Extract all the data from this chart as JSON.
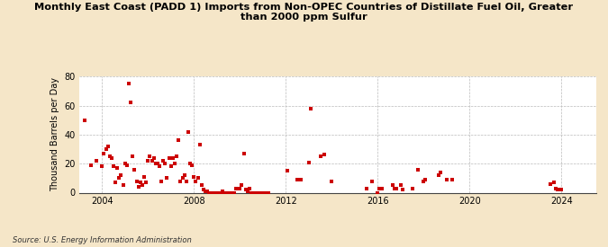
{
  "title": "Monthly East Coast (PADD 1) Imports from Non-OPEC Countries of Distillate Fuel Oil, Greater\nthan 2000 ppm Sulfur",
  "ylabel": "Thousand Barrels per Day",
  "source": "Source: U.S. Energy Information Administration",
  "background_color": "#f5e6c8",
  "plot_bg_color": "#ffffff",
  "marker_color": "#cc0000",
  "ylim": [
    0,
    80
  ],
  "yticks": [
    0,
    20,
    40,
    60,
    80
  ],
  "xlim": [
    2003.0,
    2025.5
  ],
  "xticks_years": [
    2004,
    2008,
    2012,
    2016,
    2020,
    2024
  ],
  "data": [
    [
      2003.25,
      50
    ],
    [
      2003.5,
      19
    ],
    [
      2003.75,
      22
    ],
    [
      2004.0,
      18
    ],
    [
      2004.08,
      27
    ],
    [
      2004.17,
      30
    ],
    [
      2004.25,
      32
    ],
    [
      2004.33,
      25
    ],
    [
      2004.42,
      24
    ],
    [
      2004.5,
      18
    ],
    [
      2004.58,
      7
    ],
    [
      2004.67,
      17
    ],
    [
      2004.75,
      10
    ],
    [
      2004.83,
      12
    ],
    [
      2004.92,
      5
    ],
    [
      2005.0,
      20
    ],
    [
      2005.08,
      19
    ],
    [
      2005.17,
      75
    ],
    [
      2005.25,
      62
    ],
    [
      2005.33,
      25
    ],
    [
      2005.42,
      16
    ],
    [
      2005.5,
      8
    ],
    [
      2005.58,
      4
    ],
    [
      2005.67,
      7
    ],
    [
      2005.75,
      5
    ],
    [
      2005.83,
      11
    ],
    [
      2005.92,
      7
    ],
    [
      2006.0,
      22
    ],
    [
      2006.08,
      25
    ],
    [
      2006.17,
      22
    ],
    [
      2006.25,
      24
    ],
    [
      2006.33,
      20
    ],
    [
      2006.42,
      20
    ],
    [
      2006.5,
      18
    ],
    [
      2006.58,
      8
    ],
    [
      2006.67,
      22
    ],
    [
      2006.75,
      20
    ],
    [
      2006.83,
      10
    ],
    [
      2006.92,
      24
    ],
    [
      2007.0,
      18
    ],
    [
      2007.08,
      24
    ],
    [
      2007.17,
      20
    ],
    [
      2007.25,
      25
    ],
    [
      2007.33,
      36
    ],
    [
      2007.42,
      8
    ],
    [
      2007.5,
      10
    ],
    [
      2007.58,
      12
    ],
    [
      2007.67,
      8
    ],
    [
      2007.75,
      42
    ],
    [
      2007.83,
      20
    ],
    [
      2007.92,
      19
    ],
    [
      2008.0,
      11
    ],
    [
      2008.08,
      8
    ],
    [
      2008.17,
      10
    ],
    [
      2008.25,
      33
    ],
    [
      2008.33,
      5
    ],
    [
      2008.42,
      2
    ],
    [
      2008.5,
      1
    ],
    [
      2008.58,
      1
    ],
    [
      2008.67,
      0
    ],
    [
      2008.75,
      0
    ],
    [
      2008.83,
      0
    ],
    [
      2008.92,
      0
    ],
    [
      2009.0,
      0
    ],
    [
      2009.08,
      0
    ],
    [
      2009.17,
      0
    ],
    [
      2009.25,
      1
    ],
    [
      2009.33,
      0
    ],
    [
      2009.42,
      0
    ],
    [
      2009.5,
      0
    ],
    [
      2009.58,
      0
    ],
    [
      2009.67,
      0
    ],
    [
      2009.75,
      0
    ],
    [
      2009.83,
      3
    ],
    [
      2009.92,
      3
    ],
    [
      2010.0,
      3
    ],
    [
      2010.08,
      5
    ],
    [
      2010.17,
      27
    ],
    [
      2010.25,
      2
    ],
    [
      2010.33,
      1
    ],
    [
      2010.42,
      3
    ],
    [
      2010.5,
      0
    ],
    [
      2010.58,
      0
    ],
    [
      2010.67,
      0
    ],
    [
      2010.75,
      0
    ],
    [
      2010.83,
      0
    ],
    [
      2010.92,
      0
    ],
    [
      2011.0,
      0
    ],
    [
      2011.08,
      0
    ],
    [
      2011.17,
      0
    ],
    [
      2011.25,
      0
    ],
    [
      2012.08,
      15
    ],
    [
      2012.5,
      9
    ],
    [
      2012.67,
      9
    ],
    [
      2013.0,
      21
    ],
    [
      2013.08,
      58
    ],
    [
      2013.5,
      25
    ],
    [
      2013.67,
      26
    ],
    [
      2014.0,
      8
    ],
    [
      2015.5,
      3
    ],
    [
      2015.75,
      8
    ],
    [
      2016.0,
      0
    ],
    [
      2016.08,
      3
    ],
    [
      2016.17,
      3
    ],
    [
      2016.67,
      5
    ],
    [
      2016.75,
      3
    ],
    [
      2016.83,
      3
    ],
    [
      2017.0,
      5
    ],
    [
      2017.08,
      2
    ],
    [
      2017.5,
      3
    ],
    [
      2017.75,
      16
    ],
    [
      2018.0,
      8
    ],
    [
      2018.08,
      9
    ],
    [
      2018.67,
      12
    ],
    [
      2018.75,
      14
    ],
    [
      2019.0,
      9
    ],
    [
      2019.25,
      9
    ],
    [
      2023.5,
      6
    ],
    [
      2023.67,
      7
    ],
    [
      2023.75,
      3
    ],
    [
      2023.83,
      2
    ],
    [
      2024.0,
      2
    ]
  ]
}
